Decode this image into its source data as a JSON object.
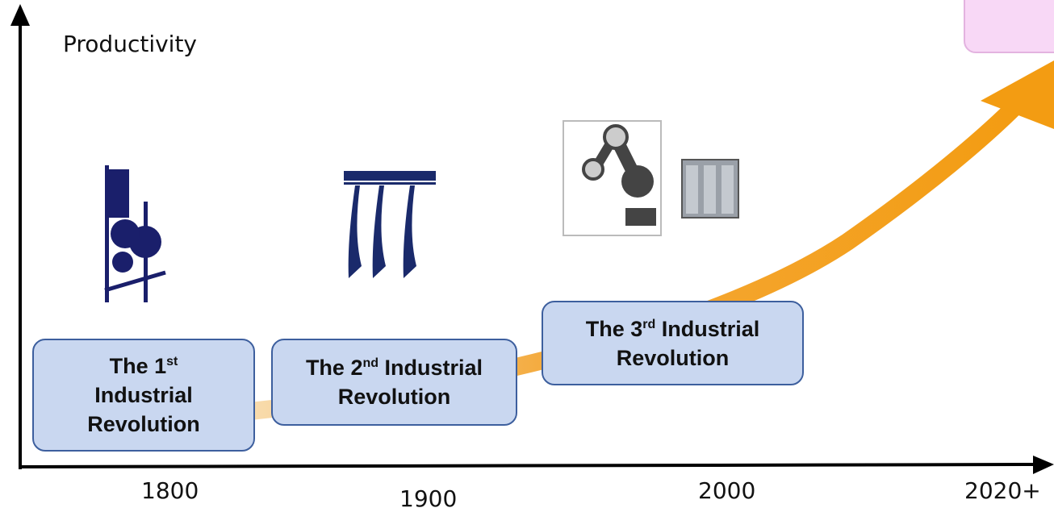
{
  "axis": {
    "y_label": "Productivity",
    "x_labels": [
      "1800",
      "1900",
      "2000",
      "2020+"
    ]
  },
  "stages": [
    {
      "prefix": "The 1",
      "superscript": "st",
      "suffix": "Industrial Revolution"
    },
    {
      "prefix": "The 2",
      "superscript": "nd",
      "suffix": "Industrial Revolution"
    },
    {
      "prefix": "The 3",
      "superscript": "rd",
      "suffix": "Industrial Revolution"
    }
  ]
}
